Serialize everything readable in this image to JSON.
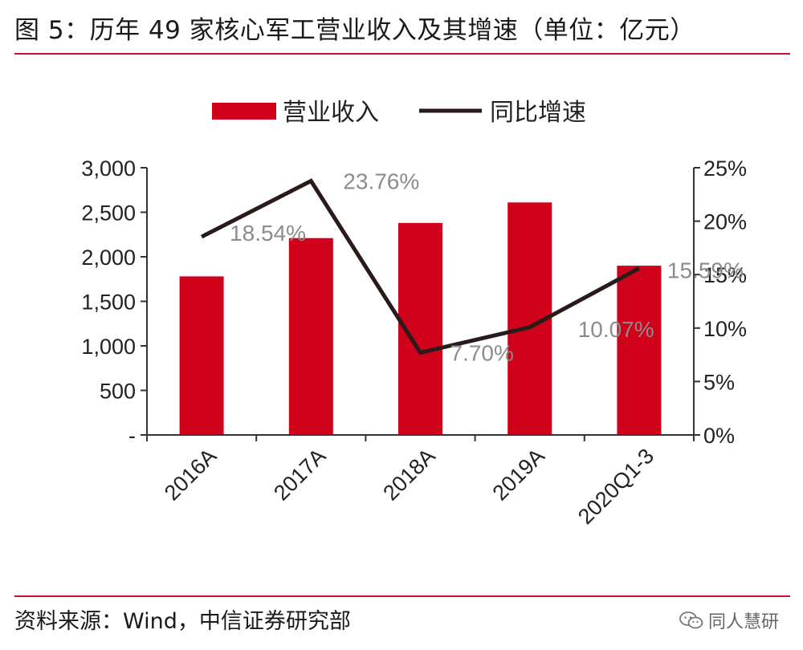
{
  "figure": {
    "title": "图 5：历年 49 家核心军工营业收入及其增速（单位：亿元）",
    "source": "资料来源：Wind，中信证券研究部",
    "watermark": "同人慧研"
  },
  "colors": {
    "bar": "#d0021b",
    "line": "#2a1a1a",
    "rule": "#c8102e"
  },
  "chart_data": {
    "type": "bar+line",
    "categories": [
      "2016A",
      "2017A",
      "2018A",
      "2019A",
      "2020Q1-3"
    ],
    "series": [
      {
        "name": "营业收入",
        "type": "bar",
        "axis": "left",
        "values": [
          1780,
          2210,
          2380,
          2610,
          1900
        ]
      },
      {
        "name": "同比增速",
        "type": "line",
        "axis": "right",
        "values": [
          18.54,
          23.76,
          7.7,
          10.07,
          15.59
        ],
        "labels": [
          "18.54%",
          "23.76%",
          "7.70%",
          "10.07%",
          "15.59%"
        ]
      }
    ],
    "left_axis": {
      "ylim": [
        0,
        3000
      ],
      "ticks": [
        0,
        500,
        1000,
        1500,
        2000,
        2500,
        3000
      ],
      "tick_labels": [
        "-",
        "500",
        "1,000",
        "1,500",
        "2,000",
        "2,500",
        "3,000"
      ]
    },
    "right_axis": {
      "ylim": [
        0,
        25
      ],
      "ticks": [
        0,
        5,
        10,
        15,
        20,
        25
      ],
      "tick_labels": [
        "0%",
        "5%",
        "10%",
        "15%",
        "20%",
        "25%"
      ]
    },
    "legend": {
      "placement": "top-center"
    },
    "grid": false
  }
}
